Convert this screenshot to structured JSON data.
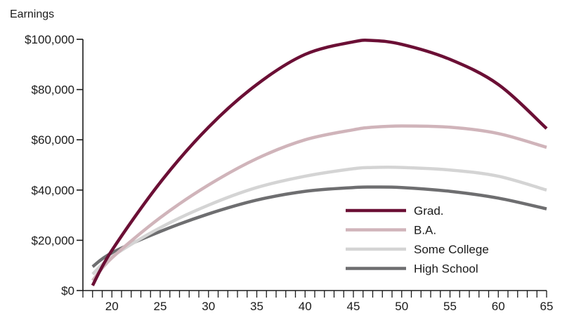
{
  "chart_data": {
    "type": "line",
    "title": "",
    "ylabel": "Earnings",
    "xlabel": "",
    "xlim": [
      17,
      65
    ],
    "ylim": [
      0,
      100000
    ],
    "x_ticks": [
      {
        "value": 20,
        "label": "20"
      },
      {
        "value": 25,
        "label": "25"
      },
      {
        "value": 30,
        "label": "30"
      },
      {
        "value": 35,
        "label": "35"
      },
      {
        "value": 40,
        "label": "40"
      },
      {
        "value": 45,
        "label": "45"
      },
      {
        "value": 50,
        "label": "50"
      },
      {
        "value": 55,
        "label": "55"
      },
      {
        "value": 60,
        "label": "60"
      },
      {
        "value": 65,
        "label": "65"
      }
    ],
    "y_ticks": [
      {
        "value": 0,
        "label": "$0"
      },
      {
        "value": 20000,
        "label": "$20,000"
      },
      {
        "value": 40000,
        "label": "$40,000"
      },
      {
        "value": 60000,
        "label": "$60,000"
      },
      {
        "value": 80000,
        "label": "$80,000"
      },
      {
        "value": 100000,
        "label": "$100,000"
      }
    ],
    "grid": false,
    "legend_position": "bottom-right",
    "x": [
      18,
      20,
      25,
      30,
      35,
      40,
      45,
      47,
      50,
      55,
      60,
      65
    ],
    "series": [
      {
        "name": "Grad.",
        "color": "#6b0f35",
        "values": [
          2000,
          16000,
          43000,
          65000,
          82000,
          94000,
          99000,
          99500,
          98000,
          92000,
          82000,
          64500
        ]
      },
      {
        "name": "B.A.",
        "color": "#d0b4ba",
        "values": [
          4000,
          13000,
          29000,
          42000,
          52500,
          60000,
          64000,
          65000,
          65500,
          65000,
          62500,
          57000
        ]
      },
      {
        "name": "Some College",
        "color": "#d4d4d4",
        "values": [
          6500,
          13500,
          25000,
          34000,
          41000,
          45500,
          48500,
          49000,
          49000,
          48000,
          45500,
          40000
        ]
      },
      {
        "name": "High School",
        "color": "#6e6e70",
        "values": [
          9500,
          15000,
          23500,
          30500,
          36000,
          39500,
          41000,
          41200,
          41000,
          39500,
          36800,
          32500
        ]
      }
    ]
  }
}
